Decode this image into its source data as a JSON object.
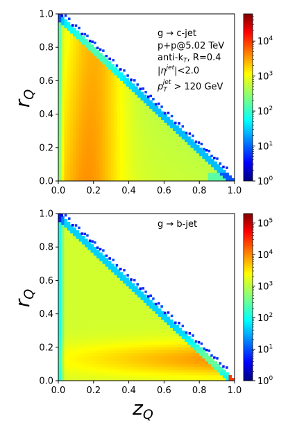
{
  "chart_data": [
    {
      "type": "heatmap",
      "xlabel": "z",
      "xlabel_sub": "Q",
      "ylabel": "r",
      "ylabel_sub": "Q",
      "xlim": [
        0.0,
        1.0
      ],
      "ylim": [
        0.0,
        1.0
      ],
      "x_ticks": [
        "0.0",
        "0.2",
        "0.4",
        "0.6",
        "0.8",
        "1.0"
      ],
      "y_ticks": [
        "0.0",
        "0.2",
        "0.4",
        "0.6",
        "0.8",
        "1.0"
      ],
      "colorbar": {
        "scale": "log",
        "min": 1,
        "max": 60000,
        "ticks": [
          {
            "value": 1,
            "base": "10",
            "exp": "0"
          },
          {
            "value": 10,
            "base": "10",
            "exp": "1"
          },
          {
            "value": 100,
            "base": "10",
            "exp": "2"
          },
          {
            "value": 1000,
            "base": "10",
            "exp": "3"
          },
          {
            "value": 10000,
            "base": "10",
            "exp": "4"
          }
        ]
      },
      "annotations": [
        "g → c-jet",
        "p+p@5.02 TeV",
        "anti-k",
        "T",
        ", R=0.4",
        "|η",
        "jet",
        "|<2.0",
        "p",
        "T",
        "jet",
        " > 120 GeV"
      ],
      "legend": "top-right",
      "colormap": "jet"
    },
    {
      "type": "heatmap",
      "xlabel": "z",
      "xlabel_sub": "Q",
      "ylabel": "r",
      "ylabel_sub": "Q",
      "xlim": [
        0.0,
        1.0
      ],
      "ylim": [
        0.0,
        1.0
      ],
      "x_ticks": [
        "0.0",
        "0.2",
        "0.4",
        "0.6",
        "0.8",
        "1.0"
      ],
      "y_ticks": [
        "0.0",
        "0.2",
        "0.4",
        "0.6",
        "0.8",
        "1.0"
      ],
      "colorbar": {
        "scale": "log",
        "min": 1,
        "max": 200000,
        "ticks": [
          {
            "value": 1,
            "base": "10",
            "exp": "0"
          },
          {
            "value": 10,
            "base": "10",
            "exp": "1"
          },
          {
            "value": 100,
            "base": "10",
            "exp": "2"
          },
          {
            "value": 1000,
            "base": "10",
            "exp": "3"
          },
          {
            "value": 10000,
            "base": "10",
            "exp": "4"
          },
          {
            "value": 100000,
            "base": "10",
            "exp": "5"
          }
        ]
      },
      "annotations": [
        "g → b-jet"
      ],
      "legend": "top-right",
      "colormap": "jet"
    }
  ]
}
